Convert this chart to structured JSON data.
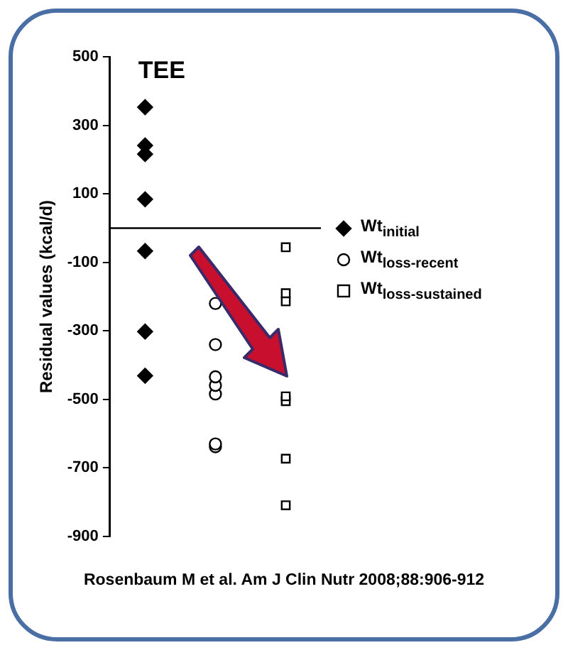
{
  "chart_data": {
    "type": "scatter",
    "title": "TEE",
    "ylabel": "Residual values (kcal/d)",
    "categories": [
      null,
      null,
      null
    ],
    "ylim": [
      -900,
      500
    ],
    "yticks": [
      500,
      300,
      100,
      -100,
      -300,
      -500,
      -700,
      -900
    ],
    "tick_labels": "y",
    "grid": false,
    "legend": "right",
    "ref_lines": [
      {
        "axis": "y",
        "value": 0
      }
    ],
    "annotations": [
      "Rosenbaum M et al. Am J Clin Nutr 2008;88:906-912"
    ],
    "series": [
      {
        "name": "Wt$_{initial}$",
        "color": "#000000",
        "marker": "diamond",
        "values": [
          353,
          null,
          null
        ]
      },
      {
        "color": "#000000",
        "marker": "diamond",
        "values": [
          241,
          null,
          null
        ]
      },
      {
        "color": "#000000",
        "marker": "diamond",
        "values": [
          216,
          null,
          null
        ]
      },
      {
        "color": "#000000",
        "marker": "diamond",
        "values": [
          84,
          null,
          null
        ]
      },
      {
        "color": "#000000",
        "marker": "diamond",
        "values": [
          -67,
          null,
          null
        ]
      },
      {
        "color": "#000000",
        "marker": "diamond",
        "values": [
          -302,
          null,
          null
        ]
      },
      {
        "color": "#000000",
        "marker": "diamond",
        "values": [
          -431,
          null,
          null
        ]
      },
      {
        "name": "Wt$_{loss-recent}$",
        "color": "#000000",
        "marker": "circle",
        "values": [
          null,
          -220,
          null
        ]
      },
      {
        "color": "#000000",
        "marker": "circle",
        "values": [
          null,
          -340,
          null
        ]
      },
      {
        "color": "#000000",
        "marker": "circle",
        "values": [
          null,
          -434,
          null
        ]
      },
      {
        "color": "#000000",
        "marker": "circle",
        "values": [
          null,
          -459,
          null
        ]
      },
      {
        "color": "#000000",
        "marker": "circle",
        "values": [
          null,
          -484,
          null
        ]
      },
      {
        "color": "#000000",
        "marker": "circle",
        "values": [
          null,
          -630,
          null
        ]
      },
      {
        "color": "#000000",
        "marker": "circle",
        "values": [
          null,
          -638,
          null
        ]
      },
      {
        "name": "Wt$_{loss-sustained}$",
        "color": "#000000",
        "marker": "square",
        "values": [
          null,
          null,
          -56
        ]
      },
      {
        "color": "#000000",
        "marker": "square",
        "values": [
          null,
          null,
          -190
        ]
      },
      {
        "color": "#000000",
        "marker": "square",
        "values": [
          null,
          null,
          -214
        ]
      },
      {
        "color": "#000000",
        "marker": "square",
        "values": [
          null,
          null,
          -491
        ]
      },
      {
        "color": "#000000",
        "marker": "square",
        "values": [
          null,
          null,
          -505
        ]
      },
      {
        "color": "#000000",
        "marker": "square",
        "values": [
          null,
          null,
          -673
        ]
      },
      {
        "color": "#000000",
        "marker": "square",
        "values": [
          null,
          null,
          -809
        ]
      }
    ]
  }
}
